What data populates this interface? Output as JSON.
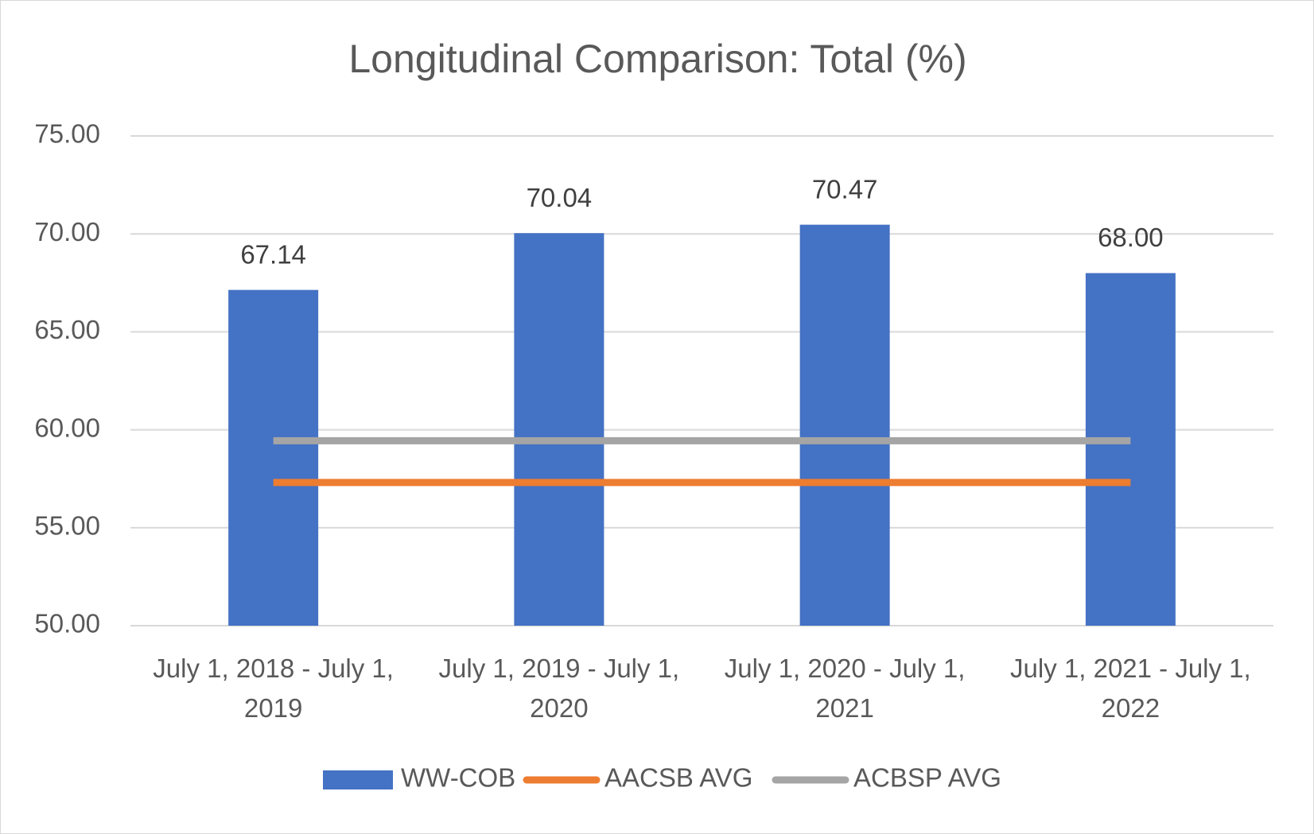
{
  "chart_data": {
    "type": "bar",
    "title": "Longitudinal Comparison: Total (%)",
    "categories": [
      "July 1, 2018 - July 1, 2019",
      "July 1, 2019 - July 1, 2020",
      "July 1, 2020 - July 1, 2021",
      "July 1, 2021 - July 1, 2022"
    ],
    "series": [
      {
        "name": "WW-COB",
        "type": "bar",
        "color": "#4472c4",
        "values": [
          67.14,
          70.04,
          70.47,
          68
        ],
        "value_labels": [
          "67.14",
          "70.04",
          "70.47",
          "68.00"
        ]
      },
      {
        "name": "AACSB AVG",
        "type": "line",
        "color": "#ed7d31",
        "values": [
          57.31,
          57.31,
          57.31,
          57.31
        ]
      },
      {
        "name": "ACBSP AVG",
        "type": "line",
        "color": "#a5a5a5",
        "values": [
          59.44,
          59.44,
          59.44,
          59.44
        ]
      }
    ],
    "ylim": [
      50,
      75
    ],
    "yticks": [
      {
        "value": 50,
        "label": "50.00"
      },
      {
        "value": 55,
        "label": "55.00"
      },
      {
        "value": 60,
        "label": "60.00"
      },
      {
        "value": 65,
        "label": "65.00"
      },
      {
        "value": 70,
        "label": "70.00"
      },
      {
        "value": 75,
        "label": "75.00"
      }
    ],
    "grid": true,
    "legend": "bottom"
  }
}
